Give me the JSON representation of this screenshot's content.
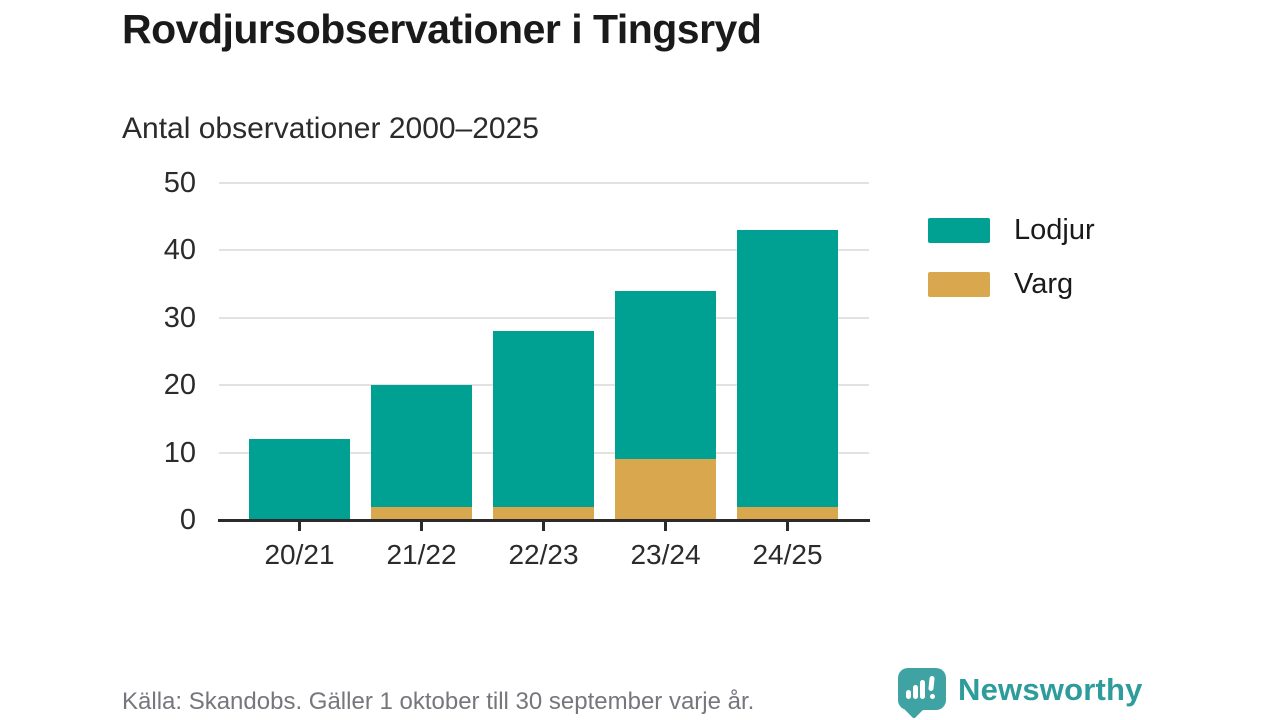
{
  "title": "Rovdjursobservationer i Tingsryd",
  "subtitle": "Antal observationer 2000–2025",
  "chart_data": {
    "type": "bar",
    "stacked": true,
    "categories": [
      "20/21",
      "21/22",
      "22/23",
      "23/24",
      "24/25"
    ],
    "series": [
      {
        "name": "Lodjur",
        "color": "#00a093",
        "values": [
          12,
          18,
          26,
          25,
          41
        ]
      },
      {
        "name": "Varg",
        "color": "#d9a84e",
        "values": [
          0,
          2,
          2,
          9,
          2
        ]
      }
    ],
    "stack_bottom_to_top": [
      "Varg",
      "Lodjur"
    ],
    "totals": [
      12,
      20,
      28,
      34,
      43
    ],
    "y_ticks": [
      0,
      10,
      20,
      30,
      40,
      50
    ],
    "ylim": [
      0,
      50
    ],
    "grid": true,
    "legend_position": "right"
  },
  "legend": {
    "items": [
      {
        "label": "Lodjur",
        "color": "#00a093"
      },
      {
        "label": "Varg",
        "color": "#d9a84e"
      }
    ]
  },
  "footer": {
    "source": "Källa: Skandobs. Gäller 1 oktober till 30 september varje år.",
    "brand": "Newsworthy"
  },
  "colors": {
    "lodjur": "#00a093",
    "varg": "#d9a84e",
    "gridline": "#e2e2e2",
    "axis": "#2b2b2b",
    "brand_teal": "#3ea3a2",
    "source_gray": "#76767c"
  }
}
